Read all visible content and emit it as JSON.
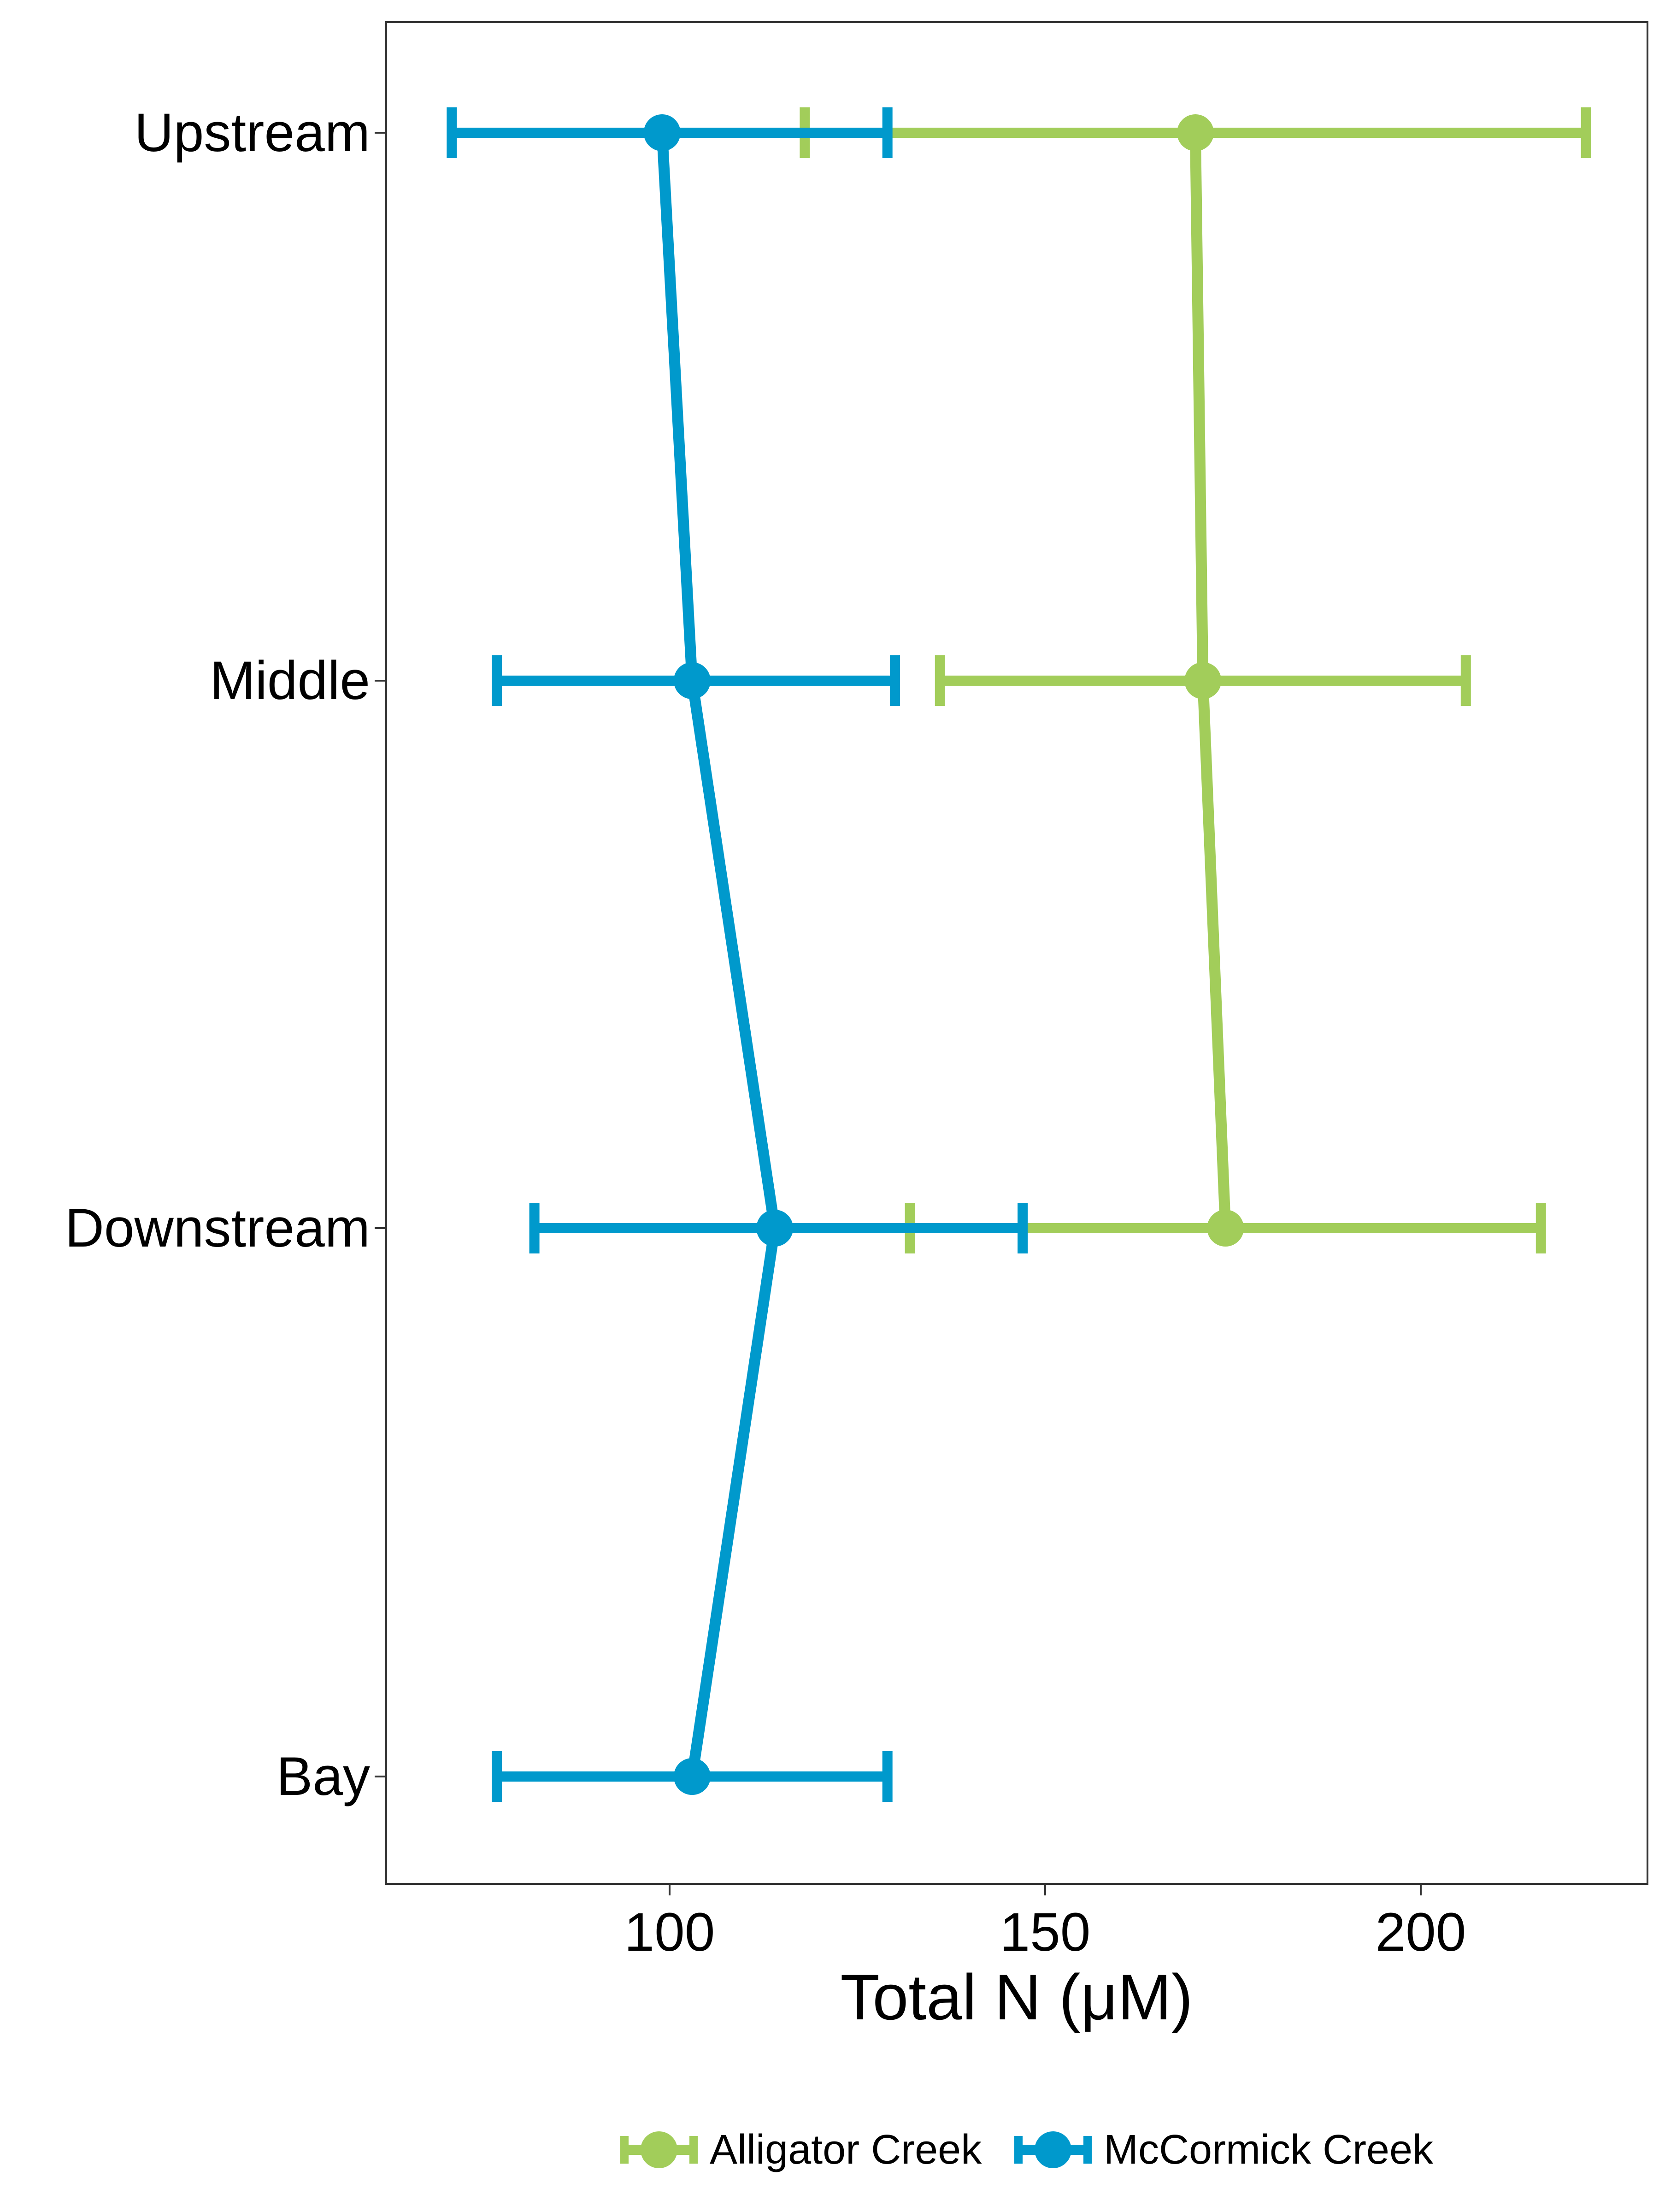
{
  "chart_data": {
    "type": "line",
    "orientation": "horizontal-errorbar",
    "title": "",
    "xlabel": "Total N (μM)",
    "ylabel": "",
    "xlim": [
      63,
      222
    ],
    "xticks": [
      100,
      150,
      200
    ],
    "categories": [
      "Upstream",
      "Middle",
      "Downstream",
      "Bay"
    ],
    "grid": false,
    "legend_position": "bottom",
    "series": [
      {
        "name": "Alligator Creek",
        "color": "#a2cd5a",
        "values": [
          170,
          171,
          174,
          null
        ],
        "lower": [
          118,
          136,
          132,
          null
        ],
        "upper": [
          222,
          206,
          216,
          null
        ]
      },
      {
        "name": "McCormick Creek",
        "color": "#0099cc",
        "values": [
          99,
          103,
          114,
          103
        ],
        "lower": [
          71,
          77,
          82,
          77
        ],
        "upper": [
          129,
          130,
          147,
          129
        ]
      }
    ]
  }
}
